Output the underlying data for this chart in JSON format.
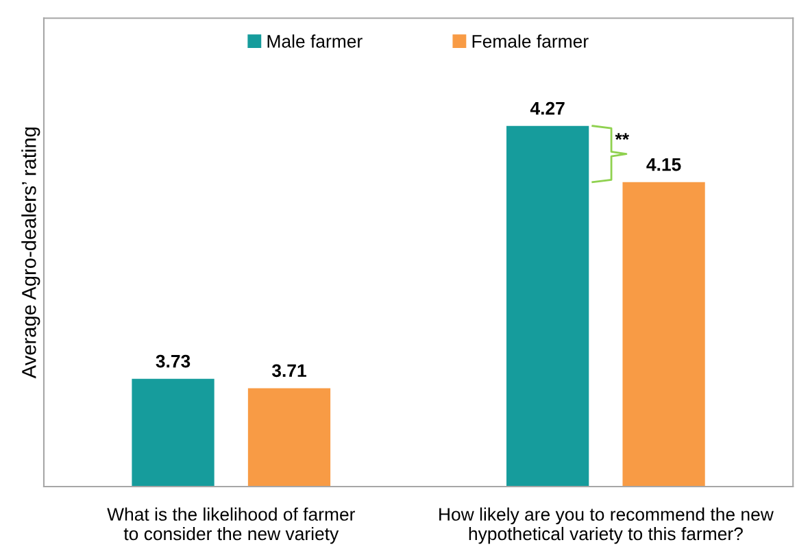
{
  "chart_data": {
    "type": "bar",
    "categories": [
      "What is the likelihood of farmer to consider the new variety",
      "How likely are you to recommend the new hypothetical variety to this farmer?"
    ],
    "series": [
      {
        "name": "Male farmer",
        "color": "#169c9c",
        "values": [
          3.73,
          4.27
        ]
      },
      {
        "name": "Female farmer",
        "color": "#f89b45",
        "values": [
          3.71,
          4.15
        ]
      }
    ],
    "ylabel": "Average Agro-dealers’ rating",
    "ylim": [
      3.5,
      4.5
    ],
    "tick_labels": "x",
    "data_labels": true,
    "annotations": [
      "**"
    ],
    "legend": "top"
  }
}
